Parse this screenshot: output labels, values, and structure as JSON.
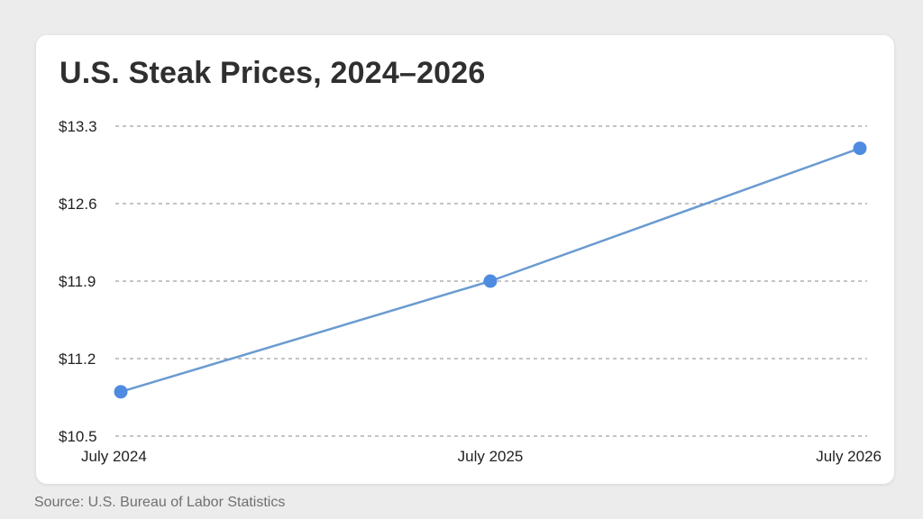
{
  "chart_data": {
    "type": "line",
    "title": "U.S. Steak Prices, 2024–2026",
    "categories": [
      "July 2024",
      "July 2025",
      "July 2026"
    ],
    "values": [
      10.9,
      11.9,
      13.1
    ],
    "ylim": [
      10.5,
      13.3
    ],
    "yticks": [
      13.3,
      12.6,
      11.9,
      11.2,
      10.5
    ],
    "ytick_labels": [
      "$13.3",
      "$12.6",
      "$11.9",
      "$11.2",
      "$10.5"
    ],
    "grid": true,
    "line_color": "#6a9bd0",
    "marker_color": "#4f8be0",
    "grid_color": "#8a8a8a"
  },
  "source": "Source: U.S. Bureau of Labor Statistics"
}
